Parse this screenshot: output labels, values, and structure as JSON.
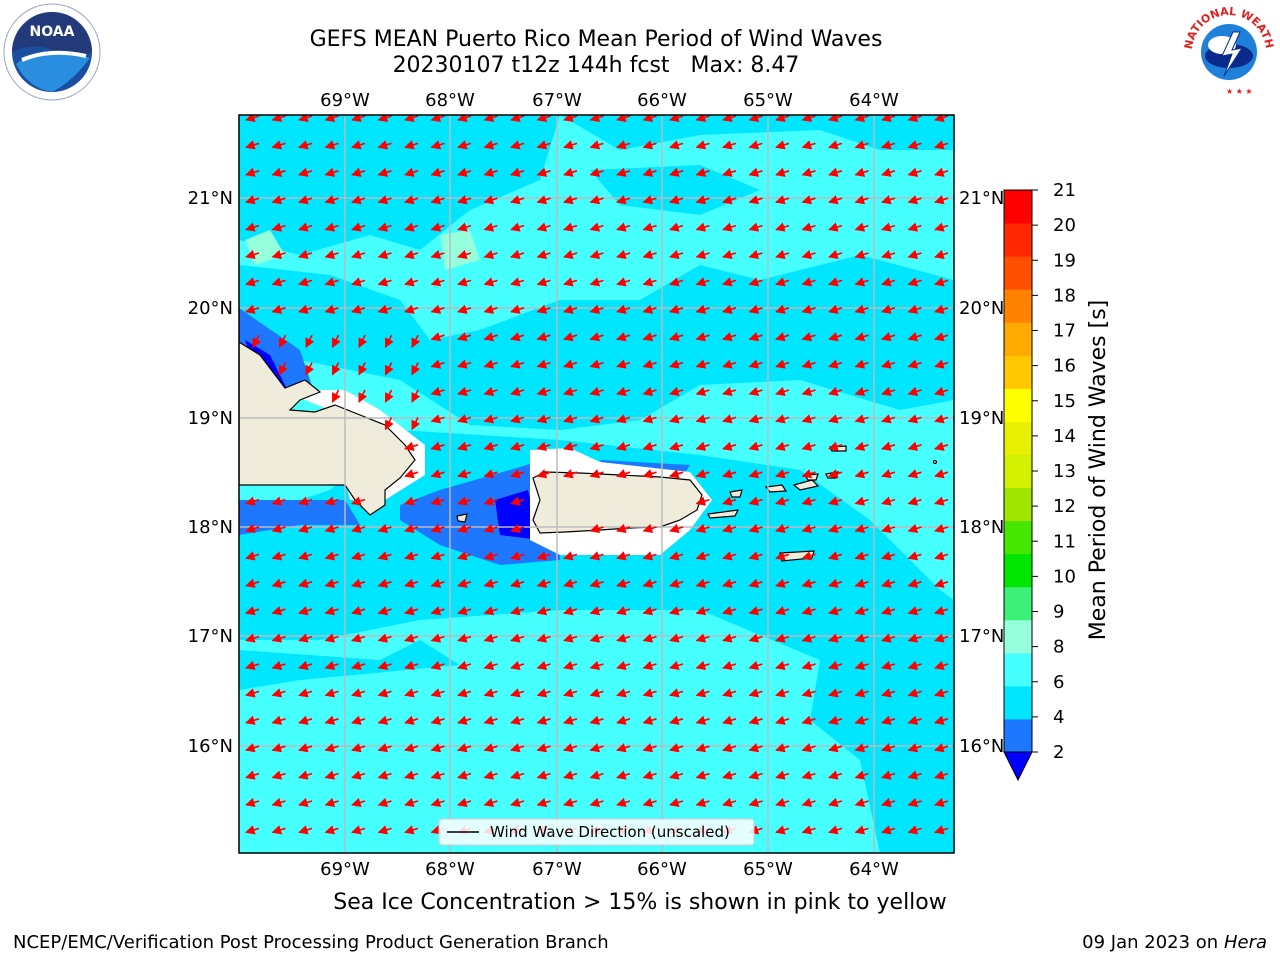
{
  "title": {
    "line1": "GEFS MEAN Puerto Rico Mean Period of Wind Waves",
    "line2_run": "20230107 t12z 144h fcst",
    "line2_max": "Max: 8.47"
  },
  "map": {
    "lon_labels": [
      "69°W",
      "68°W",
      "67°W",
      "66°W",
      "65°W",
      "64°W"
    ],
    "lat_labels": [
      "21°N",
      "20°N",
      "19°N",
      "18°N",
      "17°N",
      "16°N"
    ],
    "legend_label": "Wind Wave Direction (unscaled)",
    "land_color": "#efecdc",
    "arrow_color": "#ff0000",
    "grid_color": "#bbbbbb"
  },
  "colorbar": {
    "label": "Mean Period of Wind Waves [s]",
    "ticks": [
      "2",
      "4",
      "6",
      "8",
      "9",
      "10",
      "11",
      "12",
      "13",
      "14",
      "15",
      "16",
      "17",
      "18",
      "19",
      "20",
      "21"
    ],
    "colors": [
      "#0000ff",
      "#1e78ff",
      "#00e6ff",
      "#46ffff",
      "#96ffdc",
      "#3cf078",
      "#00e600",
      "#46e600",
      "#a0e600",
      "#d2f000",
      "#e6f000",
      "#ffff00",
      "#ffc800",
      "#ffaa00",
      "#ff8200",
      "#ff5000",
      "#ff2800",
      "#ff0000"
    ]
  },
  "caption": "Sea Ice Concentration > 15% is shown in pink to yellow",
  "footer": {
    "left": "NCEP/EMC/Verification Post Processing Product Generation Branch",
    "right_date": "09 Jan 2023 on",
    "right_host": "Hera"
  },
  "logos": {
    "noaa_text": "NOAA",
    "nws_text": "NATIONAL WEATHER SERVICE"
  }
}
